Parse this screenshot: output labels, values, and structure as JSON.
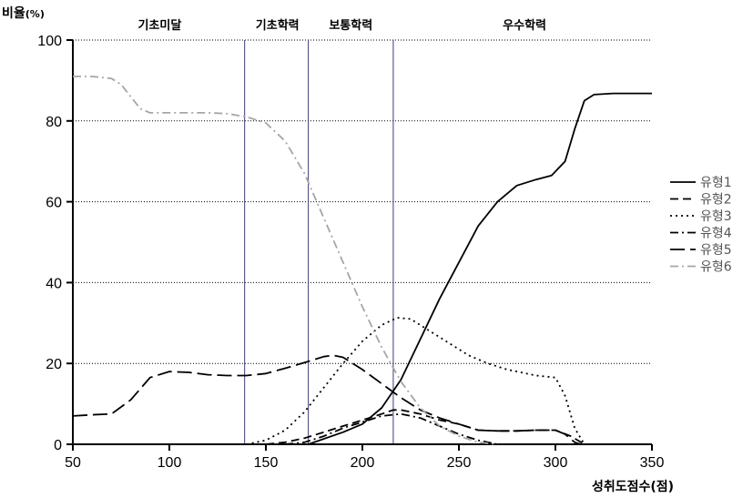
{
  "chart_data": {
    "type": "line",
    "title": "",
    "ylabel": "비율",
    "ylabel_unit": "(%)",
    "xlabel": "성취도점수(점)",
    "xlim": [
      50,
      350
    ],
    "ylim": [
      0,
      100
    ],
    "x_ticks": [
      "50",
      "100",
      "150",
      "200",
      "250",
      "300",
      "350"
    ],
    "y_ticks": [
      "0",
      "20",
      "40",
      "60",
      "80",
      "100"
    ],
    "grid": "horizontal dotted",
    "legend_position": "right",
    "regions": [
      {
        "label": "기초미달",
        "x_center": 95
      },
      {
        "label": "기초학력",
        "x_center": 156
      },
      {
        "label": "보통학력",
        "x_center": 194
      },
      {
        "label": "우수학력",
        "x_center": 284
      }
    ],
    "boundaries": [
      139,
      172,
      216
    ],
    "series": [
      {
        "name": "유형1",
        "color": "#000000",
        "dash": "solid",
        "points": [
          [
            172,
            0
          ],
          [
            190,
            3
          ],
          [
            200,
            5
          ],
          [
            210,
            9
          ],
          [
            220,
            16
          ],
          [
            230,
            26
          ],
          [
            240,
            36
          ],
          [
            250,
            45
          ],
          [
            260,
            54
          ],
          [
            270,
            60
          ],
          [
            280,
            64
          ],
          [
            290,
            65.5
          ],
          [
            298,
            66.5
          ],
          [
            305,
            70
          ],
          [
            310,
            78
          ],
          [
            315,
            85
          ],
          [
            320,
            86.5
          ],
          [
            330,
            86.8
          ],
          [
            350,
            86.8
          ]
        ]
      },
      {
        "name": "유형2",
        "color": "#000000",
        "dash": "medium",
        "points": [
          [
            150,
            0
          ],
          [
            160,
            0.5
          ],
          [
            170,
            1.5
          ],
          [
            180,
            3
          ],
          [
            190,
            4.5
          ],
          [
            200,
            6
          ],
          [
            210,
            7.5
          ],
          [
            216,
            8.5
          ],
          [
            220,
            8.5
          ],
          [
            230,
            7.5
          ],
          [
            240,
            6
          ],
          [
            250,
            5
          ],
          [
            260,
            3.5
          ],
          [
            270,
            3.3
          ],
          [
            280,
            3.3
          ],
          [
            290,
            3.5
          ],
          [
            300,
            3.5
          ],
          [
            308,
            2
          ],
          [
            315,
            0
          ]
        ]
      },
      {
        "name": "유형3",
        "color": "#000000",
        "dash": "dotted",
        "points": [
          [
            140,
            0
          ],
          [
            150,
            1
          ],
          [
            160,
            3.5
          ],
          [
            170,
            8
          ],
          [
            180,
            14
          ],
          [
            190,
            20
          ],
          [
            200,
            25.5
          ],
          [
            210,
            29.5
          ],
          [
            218,
            31.3
          ],
          [
            225,
            31
          ],
          [
            235,
            28
          ],
          [
            245,
            25
          ],
          [
            255,
            22
          ],
          [
            265,
            20
          ],
          [
            275,
            18.5
          ],
          [
            290,
            17
          ],
          [
            300,
            16.5
          ],
          [
            305,
            12
          ],
          [
            310,
            4
          ],
          [
            315,
            0
          ]
        ]
      },
      {
        "name": "유형4",
        "color": "#000000",
        "dash": "dashdot",
        "points": [
          [
            160,
            0
          ],
          [
            170,
            0.5
          ],
          [
            180,
            2
          ],
          [
            190,
            4
          ],
          [
            200,
            5.5
          ],
          [
            210,
            7
          ],
          [
            220,
            7.5
          ],
          [
            230,
            6.5
          ],
          [
            240,
            4.5
          ],
          [
            250,
            2.5
          ],
          [
            260,
            1
          ],
          [
            270,
            0
          ]
        ]
      },
      {
        "name": "유형5",
        "color": "#000000",
        "dash": "long",
        "points": [
          [
            50,
            7
          ],
          [
            60,
            7.3
          ],
          [
            70,
            7.5
          ],
          [
            80,
            11
          ],
          [
            90,
            16.5
          ],
          [
            100,
            18
          ],
          [
            110,
            17.8
          ],
          [
            120,
            17.2
          ],
          [
            130,
            17
          ],
          [
            140,
            17
          ],
          [
            150,
            17.5
          ],
          [
            160,
            18.8
          ],
          [
            170,
            20.2
          ],
          [
            180,
            21.7
          ],
          [
            185,
            22
          ],
          [
            190,
            21.5
          ],
          [
            200,
            18.5
          ],
          [
            210,
            15
          ],
          [
            220,
            11.5
          ],
          [
            230,
            8.5
          ],
          [
            240,
            6.5
          ],
          [
            250,
            5
          ],
          [
            260,
            3.5
          ],
          [
            270,
            3.3
          ],
          [
            280,
            3.3
          ],
          [
            290,
            3.5
          ],
          [
            300,
            3.5
          ],
          [
            305,
            2.5
          ],
          [
            310,
            0.5
          ],
          [
            313,
            0
          ]
        ]
      },
      {
        "name": "유형6",
        "color": "#a6a6a6",
        "dash": "dashdot",
        "points": [
          [
            50,
            91
          ],
          [
            60,
            91
          ],
          [
            70,
            90.5
          ],
          [
            75,
            89
          ],
          [
            80,
            86
          ],
          [
            85,
            83
          ],
          [
            90,
            82
          ],
          [
            100,
            82
          ],
          [
            120,
            82
          ],
          [
            130,
            81.8
          ],
          [
            140,
            81
          ],
          [
            150,
            79.5
          ],
          [
            160,
            75
          ],
          [
            170,
            67
          ],
          [
            180,
            56
          ],
          [
            190,
            45
          ],
          [
            200,
            34
          ],
          [
            210,
            24
          ],
          [
            220,
            15.5
          ],
          [
            230,
            9
          ],
          [
            240,
            4.5
          ],
          [
            250,
            2
          ],
          [
            260,
            0.5
          ],
          [
            270,
            0
          ]
        ]
      }
    ]
  }
}
